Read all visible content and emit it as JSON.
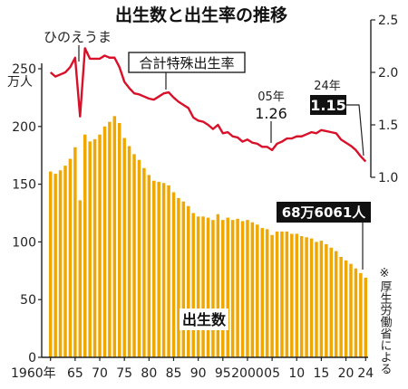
{
  "chart_data": {
    "type": "bar",
    "title": "出生数と出生率の推移",
    "left_axis": {
      "unit": "万人",
      "ticks": [
        "250",
        "200",
        "150",
        "100",
        "50",
        "0"
      ],
      "ylim": [
        0,
        250
      ]
    },
    "right_axis": {
      "ticks": [
        "2.5",
        "2.0",
        "1.5",
        "1.0"
      ],
      "ylim": [
        1.0,
        2.5
      ]
    },
    "x_tick_labels": [
      "1960年",
      "65",
      "70",
      "75",
      "80",
      "85",
      "90",
      "95",
      "2000",
      "05",
      "10",
      "15",
      "20",
      "24"
    ],
    "years": [
      1960,
      1961,
      1962,
      1963,
      1964,
      1965,
      1966,
      1967,
      1968,
      1969,
      1970,
      1971,
      1972,
      1973,
      1974,
      1975,
      1976,
      1977,
      1978,
      1979,
      1980,
      1981,
      1982,
      1983,
      1984,
      1985,
      1986,
      1987,
      1988,
      1989,
      1990,
      1991,
      1992,
      1993,
      1994,
      1995,
      1996,
      1997,
      1998,
      1999,
      2000,
      2001,
      2002,
      2003,
      2004,
      2005,
      2006,
      2007,
      2008,
      2009,
      2010,
      2011,
      2012,
      2013,
      2014,
      2015,
      2016,
      2017,
      2018,
      2019,
      2020,
      2021,
      2022,
      2023,
      2024
    ],
    "series": [
      {
        "name": "出生数",
        "type": "bar",
        "axis": "left",
        "color": "#f0a700",
        "values": [
          161,
          159,
          162,
          166,
          172,
          182,
          136,
          193,
          187,
          189,
          193,
          200,
          204,
          209,
          203,
          190,
          183,
          176,
          171,
          164,
          158,
          153,
          152,
          151,
          149,
          143,
          138,
          135,
          131,
          125,
          122,
          122,
          121,
          119,
          124,
          119,
          121,
          119,
          120,
          118,
          119,
          117,
          115,
          112,
          111,
          106,
          109,
          109,
          109,
          107,
          107,
          105,
          104,
          103,
          100,
          101,
          98,
          95,
          92,
          87,
          84,
          81,
          77,
          73,
          69
        ]
      },
      {
        "name": "合計特殊出生率",
        "type": "line",
        "axis": "right",
        "color": "#d9102a",
        "values": [
          2.0,
          1.96,
          1.98,
          2.0,
          2.05,
          2.14,
          1.58,
          2.23,
          2.13,
          2.13,
          2.13,
          2.16,
          2.14,
          2.14,
          2.05,
          1.91,
          1.85,
          1.8,
          1.79,
          1.77,
          1.75,
          1.74,
          1.77,
          1.8,
          1.81,
          1.76,
          1.72,
          1.69,
          1.66,
          1.57,
          1.54,
          1.53,
          1.5,
          1.46,
          1.5,
          1.42,
          1.43,
          1.39,
          1.38,
          1.34,
          1.36,
          1.33,
          1.32,
          1.29,
          1.29,
          1.26,
          1.32,
          1.34,
          1.37,
          1.37,
          1.39,
          1.39,
          1.41,
          1.43,
          1.42,
          1.45,
          1.44,
          1.43,
          1.42,
          1.36,
          1.33,
          1.3,
          1.26,
          1.2,
          1.15
        ]
      }
    ],
    "annotations": {
      "hinoeuma": "ひのえうま",
      "rate_label": "合計特殊出生率",
      "y05_label": "05年",
      "y05_value": "1.26",
      "y24_label": "24年",
      "y24_value": "1.15",
      "births_2024": "68万6061人",
      "births_label": "出生数",
      "source": "※厚生労働省による"
    }
  }
}
